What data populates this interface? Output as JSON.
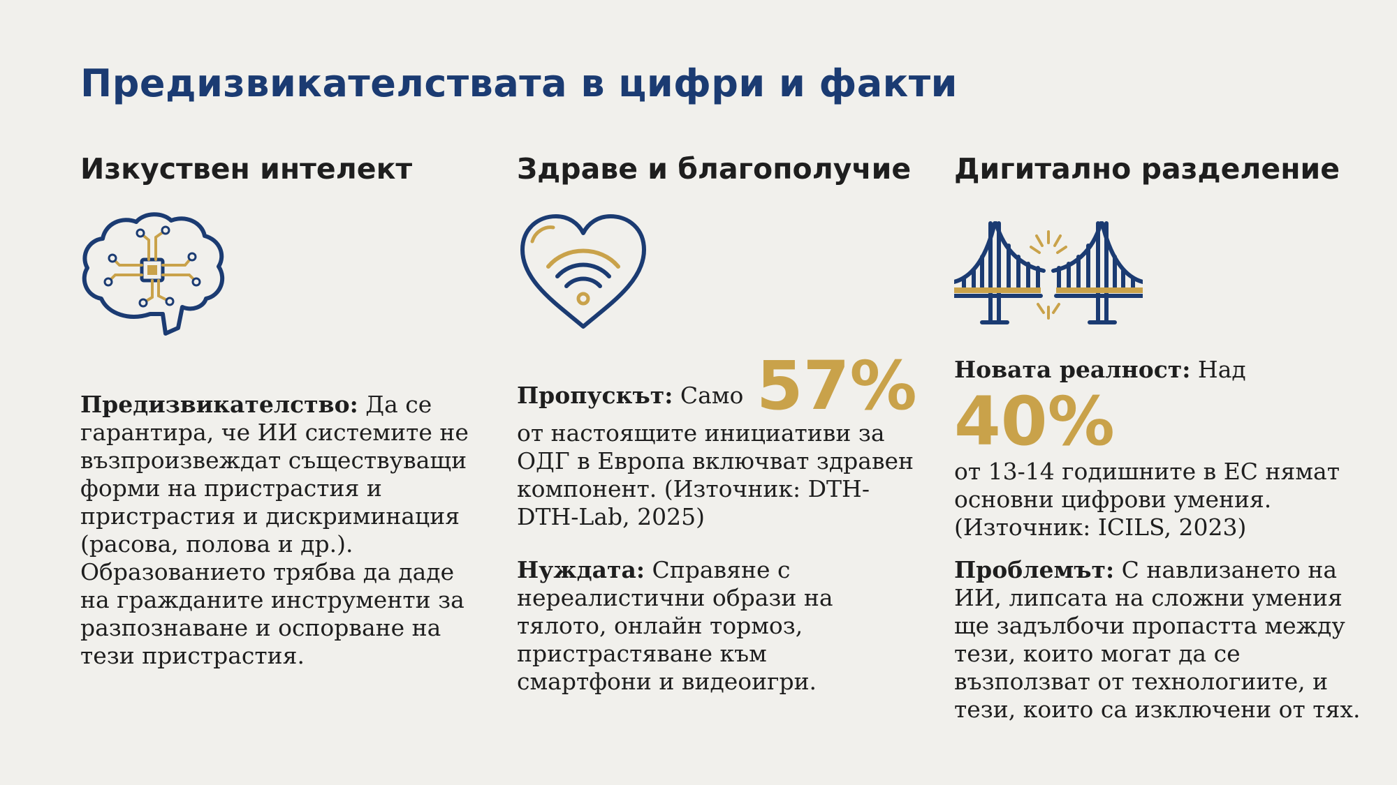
{
  "title": "Предизвикателствата в цифри и факти",
  "colors": {
    "navy": "#1b3b72",
    "gold": "#c9a24a",
    "background": "#f1f0ec"
  },
  "columns": [
    {
      "heading": "Изкуствен интелект",
      "icon": "brain-circuit-icon",
      "paragraphs": [
        {
          "label": "Предизвикателство:",
          "text": " Да се гарантира, че ИИ системите не възпроизвеждат съществуващи форми на пристрастия и пристрастия и дискриминация (расова, полова и др.). Образованието трябва да даде на гражданите инструменти за разпознаване и оспорване на тези пристрастия."
        }
      ]
    },
    {
      "heading": "Здраве и благополучие",
      "icon": "heart-wifi-icon",
      "paragraphs": [
        {
          "label": "Пропускът:",
          "before": " Само ",
          "stat": "57%",
          "after": "от настоящите инициативи за ОДГ в Европа включват здравен компонент. (Източник: DTH-DTH-Lab, 2025)"
        },
        {
          "label": "Нуждата:",
          "text": " Справяне с нереалистични образи на тялото, онлайн тормоз, пристрастяване към смартфони и видеоигри."
        }
      ]
    },
    {
      "heading": "Дигитално разделение",
      "icon": "broken-bridge-icon",
      "paragraphs": [
        {
          "label": "Новата реалност:",
          "before": " Над",
          "stat": "40%",
          "after": "от 13-14 годишните в ЕС нямат основни цифрови умения. (Източник: ICILS, 2023)"
        },
        {
          "label": "Проблемът:",
          "text": " С навлизането на ИИ, липсата на сложни умения ще задълбочи пропастта между тези, които могат да се възползват от технологиите, и тези, които са изключени от тях."
        }
      ]
    }
  ]
}
